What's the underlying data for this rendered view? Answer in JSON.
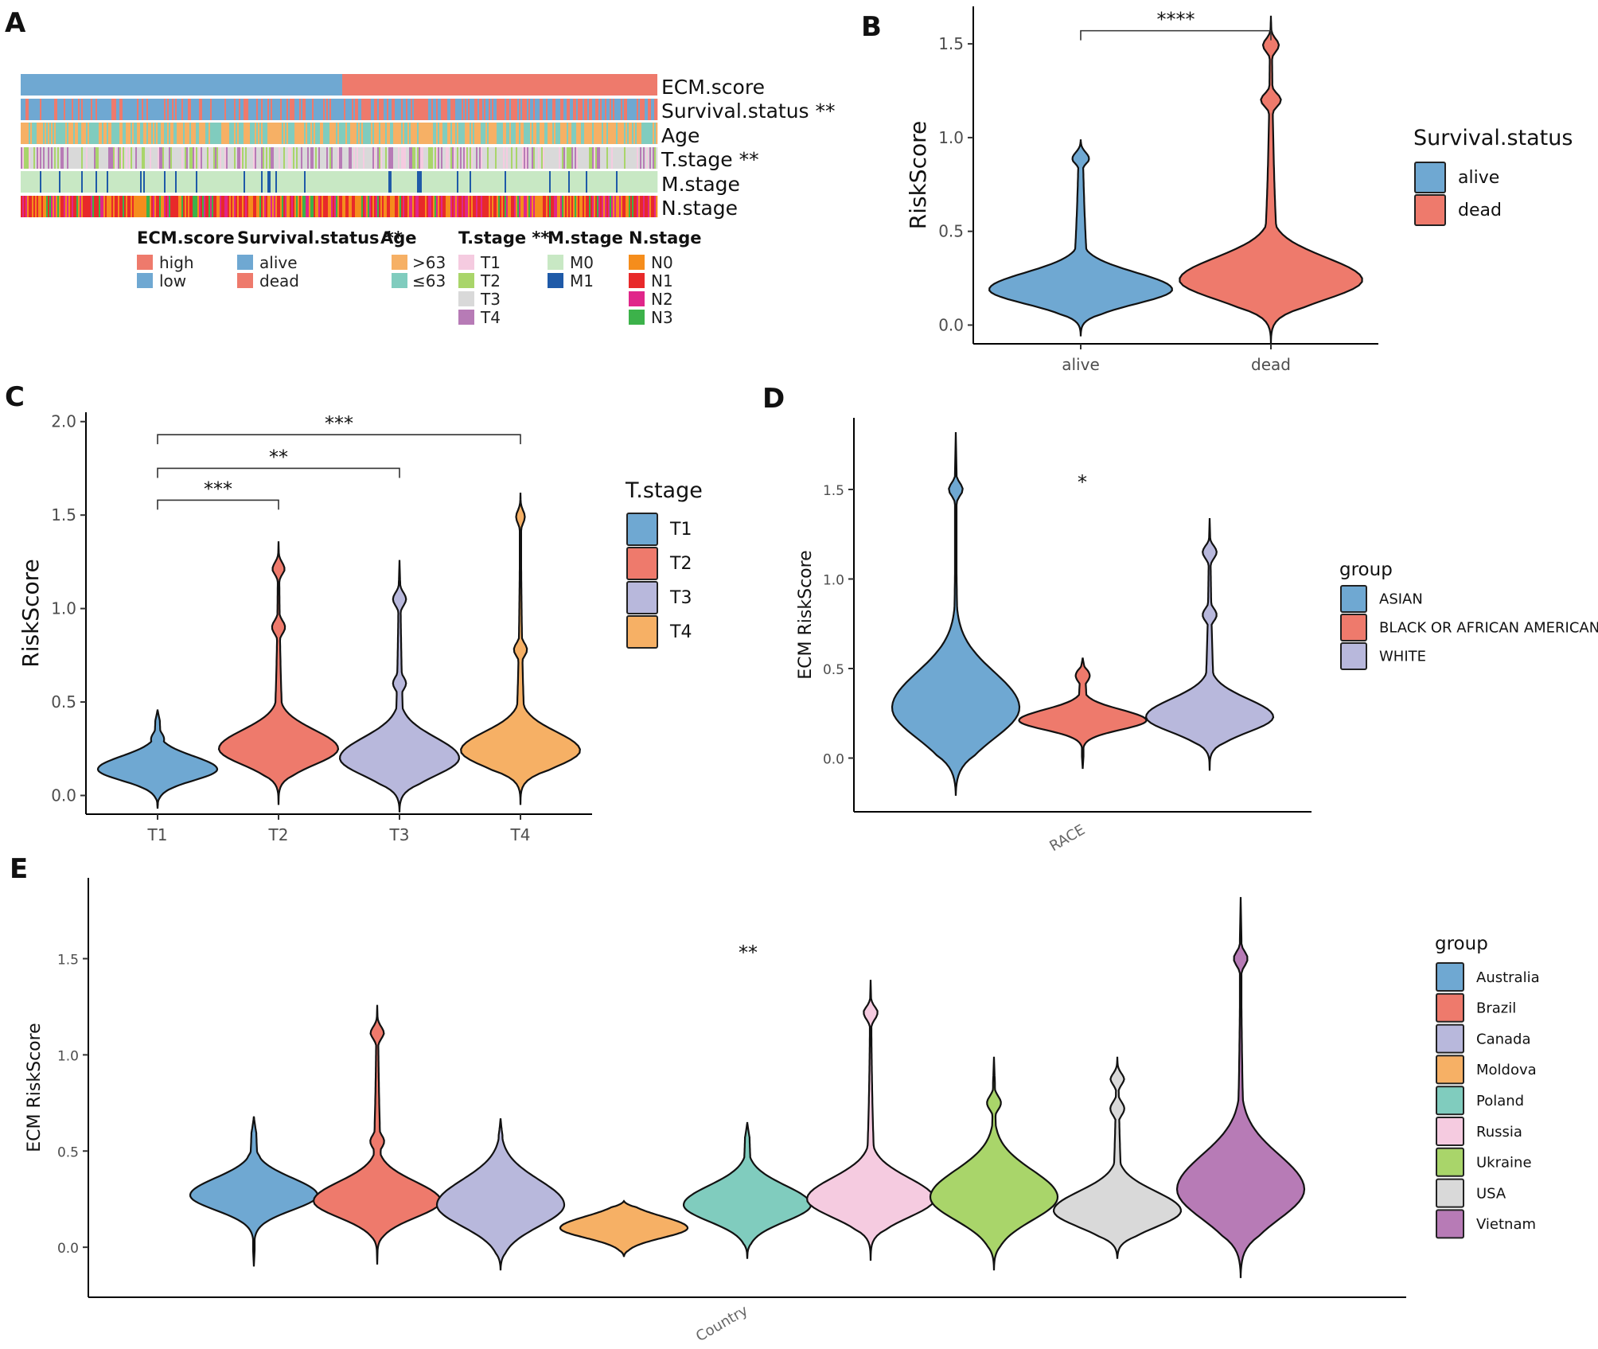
{
  "panels": {
    "A": "A",
    "B": "B",
    "C": "C",
    "D": "D",
    "E": "E"
  },
  "colors": {
    "blue": "#6fa8d2",
    "red": "#ee7a6c",
    "lavender": "#b8b8dc",
    "orange": "#f6b065",
    "teal": "#80ccbe",
    "pink": "#f5cbe0",
    "lime": "#a9d56a",
    "grey": "#d9d9d9",
    "purple": "#b77bb6"
  },
  "heatmap": {
    "rows": [
      {
        "label": "ECM.score"
      },
      {
        "label": "Survival.status **"
      },
      {
        "label": "Age"
      },
      {
        "label": "T.stage **"
      },
      {
        "label": "M.stage"
      },
      {
        "label": "N.stage"
      }
    ],
    "legends": [
      {
        "title": "ECM.score",
        "items": [
          {
            "label": "high",
            "color": "#ee7a6c"
          },
          {
            "label": "low",
            "color": "#6fa8d2"
          }
        ]
      },
      {
        "title": "Survival.status **",
        "items": [
          {
            "label": "alive",
            "color": "#6fa8d2"
          },
          {
            "label": "dead",
            "color": "#ee7a6c"
          }
        ]
      },
      {
        "title": "Age",
        "items": [
          {
            "label": ">63",
            "color": "#f6b065"
          },
          {
            "label": "≤63",
            "color": "#80ccbe"
          }
        ]
      },
      {
        "title": "T.stage **",
        "items": [
          {
            "label": "T1",
            "color": "#f5cbe0"
          },
          {
            "label": "T2",
            "color": "#a9d56a"
          },
          {
            "label": "T3",
            "color": "#d9d9d9"
          },
          {
            "label": "T4",
            "color": "#b77bb6"
          }
        ]
      },
      {
        "title": "M.stage",
        "items": [
          {
            "label": "M0",
            "color": "#c8e8c4"
          },
          {
            "label": "M1",
            "color": "#1f5aa8"
          }
        ]
      },
      {
        "title": "N.stage",
        "items": [
          {
            "label": "N0",
            "color": "#f58d1c"
          },
          {
            "label": "N1",
            "color": "#e8292a"
          },
          {
            "label": "N2",
            "color": "#e0268a"
          },
          {
            "label": "N3",
            "color": "#3cb24a"
          }
        ]
      }
    ]
  },
  "chart_data": [
    {
      "id": "B",
      "type": "violin",
      "xlabel": "",
      "ylabel": "RiskScore",
      "ylim": [
        -0.1,
        1.7
      ],
      "yticks": [
        0.0,
        0.5,
        1.0,
        1.5
      ],
      "ytick_labels": [
        "0.0",
        "0.5",
        "1.0",
        "1.5"
      ],
      "categories": [
        "alive",
        "dead"
      ],
      "series": [
        {
          "name": "alive",
          "color": "#6fa8d2",
          "min": -0.06,
          "max": 0.99,
          "mode": 0.19,
          "spread": 0.09,
          "tail": 0.9,
          "bumps": [
            0.9
          ]
        },
        {
          "name": "dead",
          "color": "#ee7a6c",
          "min": -0.1,
          "max": 1.65,
          "mode": 0.24,
          "spread": 0.12,
          "tail": 1.0,
          "bumps": [
            1.2,
            1.5
          ]
        }
      ],
      "legend_title": "Survival.status",
      "legend": [
        "alive",
        "dead"
      ],
      "comparisons": [
        {
          "from": "alive",
          "to": "dead",
          "label": "****",
          "y": 1.57
        }
      ]
    },
    {
      "id": "C",
      "type": "violin",
      "xlabel": "",
      "ylabel": "RiskScore",
      "ylim": [
        -0.1,
        2.05
      ],
      "yticks": [
        0.0,
        0.5,
        1.0,
        1.5,
        2.0
      ],
      "ytick_labels": [
        "0.0",
        "0.5",
        "1.0",
        "1.5",
        "2.0"
      ],
      "categories": [
        "T1",
        "T2",
        "T3",
        "T4"
      ],
      "series": [
        {
          "name": "T1",
          "color": "#6fa8d2",
          "min": -0.07,
          "max": 0.46,
          "mode": 0.14,
          "spread": 0.07,
          "tail": 0.45,
          "bumps": [
            0.3
          ]
        },
        {
          "name": "T2",
          "color": "#ee7a6c",
          "min": -0.05,
          "max": 1.36,
          "mode": 0.25,
          "spread": 0.1,
          "tail": 0.75,
          "bumps": [
            0.9,
            1.22
          ]
        },
        {
          "name": "T3",
          "color": "#b8b8dc",
          "min": -0.09,
          "max": 1.26,
          "mode": 0.2,
          "spread": 0.11,
          "tail": 0.85,
          "bumps": [
            0.6,
            1.05
          ]
        },
        {
          "name": "T4",
          "color": "#f6b065",
          "min": -0.05,
          "max": 1.62,
          "mode": 0.24,
          "spread": 0.1,
          "tail": 0.8,
          "bumps": [
            0.78,
            1.5
          ]
        }
      ],
      "legend_title": "T.stage",
      "legend": [
        "T1",
        "T2",
        "T3",
        "T4"
      ],
      "comparisons": [
        {
          "from": "T1",
          "to": "T2",
          "label": "***",
          "y": 1.58
        },
        {
          "from": "T1",
          "to": "T3",
          "label": "**",
          "y": 1.75
        },
        {
          "from": "T1",
          "to": "T4",
          "label": "***",
          "y": 1.93
        }
      ]
    },
    {
      "id": "D",
      "type": "violin",
      "xlabel": "RACE",
      "ylabel": "ECM RiskScore",
      "ylim": [
        -0.3,
        1.9
      ],
      "yticks": [
        0.0,
        0.5,
        1.0,
        1.5
      ],
      "ytick_labels": [
        "0.0",
        "0.5",
        "1.0",
        "1.5"
      ],
      "categories": [
        "ASIAN",
        "BLACK OR AFRICAN AMERICAN",
        "WHITE"
      ],
      "series": [
        {
          "name": "ASIAN",
          "color": "#6fa8d2",
          "min": -0.21,
          "max": 1.82,
          "mode": 0.28,
          "spread": 0.2,
          "tail": 0.6,
          "bumps": [
            1.5
          ]
        },
        {
          "name": "BLACK OR AFRICAN AMERICAN",
          "color": "#ee7a6c",
          "min": -0.06,
          "max": 0.56,
          "mode": 0.21,
          "spread": 0.06,
          "tail": 0.5,
          "bumps": [
            0.46
          ]
        },
        {
          "name": "WHITE",
          "color": "#b8b8dc",
          "min": -0.07,
          "max": 1.34,
          "mode": 0.23,
          "spread": 0.1,
          "tail": 0.8,
          "bumps": [
            1.15,
            0.8
          ]
        }
      ],
      "legend_title": "group",
      "legend": [
        "ASIAN",
        "BLACK OR AFRICAN AMERICAN",
        "WHITE"
      ],
      "annotation": {
        "label": "*",
        "y": 1.55
      }
    },
    {
      "id": "E",
      "type": "violin",
      "xlabel": "Country",
      "ylabel": "ECM RiskScore",
      "ylim": [
        -0.26,
        1.92
      ],
      "yticks": [
        0.0,
        0.5,
        1.0,
        1.5
      ],
      "ytick_labels": [
        "0.0",
        "0.5",
        "1.0",
        "1.5"
      ],
      "categories": [
        "Australia",
        "Brazil",
        "Canada",
        "Moldova",
        "Poland",
        "Russia",
        "Ukraine",
        "USA",
        "Vietnam"
      ],
      "series": [
        {
          "name": "Australia",
          "color": "#6fa8d2",
          "min": -0.1,
          "max": 0.68,
          "mode": 0.27,
          "spread": 0.09,
          "tail": 0.6,
          "bumps": [
            0.45
          ]
        },
        {
          "name": "Brazil",
          "color": "#ee7a6c",
          "min": -0.09,
          "max": 1.26,
          "mode": 0.24,
          "spread": 0.1,
          "tail": 0.8,
          "bumps": [
            0.55,
            1.12
          ]
        },
        {
          "name": "Canada",
          "color": "#b8b8dc",
          "min": -0.12,
          "max": 0.67,
          "mode": 0.22,
          "spread": 0.13,
          "tail": 0.5,
          "bumps": []
        },
        {
          "name": "Moldova",
          "color": "#f6b065",
          "min": -0.05,
          "max": 0.24,
          "mode": 0.1,
          "spread": 0.06,
          "tail": 0.0,
          "bumps": [
            0.05,
            0.15
          ]
        },
        {
          "name": "Poland",
          "color": "#80ccbe",
          "min": -0.06,
          "max": 0.65,
          "mode": 0.22,
          "spread": 0.1,
          "tail": 0.6,
          "bumps": []
        },
        {
          "name": "Russia",
          "color": "#f5cbe0",
          "min": -0.07,
          "max": 1.39,
          "mode": 0.25,
          "spread": 0.11,
          "tail": 0.7,
          "bumps": [
            1.22
          ]
        },
        {
          "name": "Ukraine",
          "color": "#a9d56a",
          "min": -0.12,
          "max": 0.99,
          "mode": 0.26,
          "spread": 0.14,
          "tail": 0.5,
          "bumps": [
            0.75
          ]
        },
        {
          "name": "USA",
          "color": "#d9d9d9",
          "min": -0.06,
          "max": 0.99,
          "mode": 0.19,
          "spread": 0.1,
          "tail": 0.7,
          "bumps": [
            0.72,
            0.88
          ]
        },
        {
          "name": "Vietnam",
          "color": "#b77bb6",
          "min": -0.16,
          "max": 1.82,
          "mode": 0.3,
          "spread": 0.18,
          "tail": 0.8,
          "bumps": [
            1.5
          ]
        }
      ],
      "legend_title": "group",
      "legend": [
        "Australia",
        "Brazil",
        "Canada",
        "Moldova",
        "Poland",
        "Russia",
        "Ukraine",
        "USA",
        "Vietnam"
      ],
      "annotation": {
        "label": "**",
        "y": 1.54
      }
    }
  ]
}
